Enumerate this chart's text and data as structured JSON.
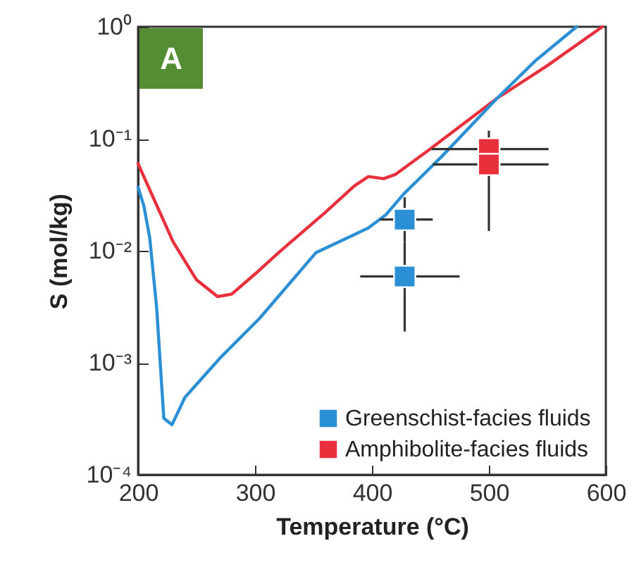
{
  "chart_data": {
    "type": "line",
    "xlabel": "Temperature (°C)",
    "ylabel": "S (mol/kg)",
    "annotations": [
      "A"
    ],
    "xlim": [
      200,
      600
    ],
    "xticks": [
      200,
      300,
      400,
      500,
      600
    ],
    "ylim": [
      0.0001,
      1
    ],
    "log": true,
    "yticks": [
      {
        "value": 0.0001,
        "label": "10⁻⁴"
      },
      {
        "value": 0.001,
        "label": "10⁻³"
      },
      {
        "value": 0.01,
        "label": "10⁻²"
      },
      {
        "value": 0.1,
        "label": "10⁻¹"
      },
      {
        "value": 1,
        "label": "10⁰"
      }
    ],
    "grid": false,
    "legend": "bottom right",
    "line_style": "solid",
    "series": [
      {
        "color": "#e8303c",
        "x": [
          200,
          210,
          230,
          250,
          268,
          280,
          300,
          320,
          360,
          385,
          397,
          410,
          420,
          449,
          507,
          550,
          597
        ],
        "values": [
          0.06,
          0.035,
          0.012,
          0.0055,
          0.0039,
          0.0041,
          0.0062,
          0.0096,
          0.022,
          0.038,
          0.046,
          0.044,
          0.048,
          0.08,
          0.23,
          0.45,
          1
        ]
      },
      {
        "color": "#2b8fd6",
        "x": [
          200,
          205,
          210,
          216,
          222,
          229,
          240,
          270,
          304,
          352,
          397,
          412,
          427,
          460,
          507,
          540,
          575
        ],
        "values": [
          0.037,
          0.025,
          0.013,
          0.003,
          0.00032,
          0.00028,
          0.00049,
          0.0011,
          0.0025,
          0.0096,
          0.016,
          0.021,
          0.032,
          0.07,
          0.23,
          0.5,
          1
        ]
      },
      {
        "type": "scatter",
        "name": "Greenschist-facies fluids",
        "color": "#2b8fd6",
        "marker": "square",
        "x": [
          428,
          428
        ],
        "values": [
          0.019,
          0.0059
        ],
        "errors": [
          [
            0.012,
            0.03
          ],
          [
            0.0019,
            0.012
          ]
        ],
        "xerrors": [
          [
            407,
            452
          ],
          [
            390,
            475
          ]
        ]
      },
      {
        "type": "scatter",
        "name": "Amphibolite-facies fluids",
        "color": "#e8303c",
        "marker": "square",
        "x": [
          500,
          500
        ],
        "values": [
          0.081,
          0.059
        ],
        "errors": [
          [
            0.081,
            0.118
          ],
          [
            0.015,
            0.081
          ]
        ],
        "xerrors": [
          [
            451,
            551
          ],
          [
            452,
            551
          ]
        ]
      }
    ]
  }
}
